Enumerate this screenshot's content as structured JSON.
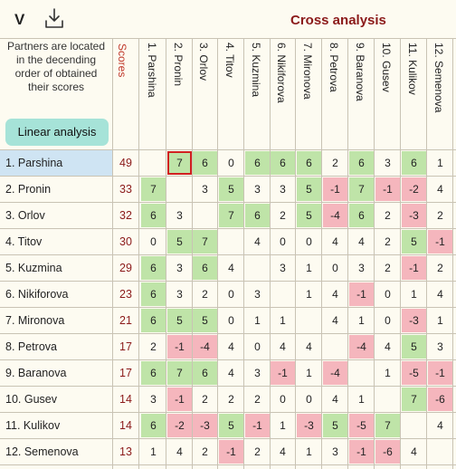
{
  "toolbar": {
    "v_label": "V",
    "download_icon": "download-icon"
  },
  "title": "Cross analysis",
  "info_text": "Partners are located in the decending order of obtained their scores",
  "linear_button": "Linear analysis",
  "scores_header": "Scores",
  "columns": [
    "1. Parshina",
    "2. Pronin",
    "3. Orlov",
    "4. Titov",
    "5. Kuzmina",
    "6. Nikiforova",
    "7. Mironova",
    "8. Petrova",
    "9. Baranova",
    "10. Gusev",
    "11. Kulikov",
    "12. Semenova"
  ],
  "selected_row": 0,
  "highlighted_cell": [
    0,
    1
  ],
  "colors": {
    "positive": "#bfe4a8",
    "negative": "#f5b6bd",
    "highlight": "#d02020",
    "title": "#8b1a1a",
    "accent_button": "#a6e3d8",
    "selected_row": "#cfe4f3"
  },
  "rows": [
    {
      "name": "1. Parshina",
      "score": "49",
      "values": [
        null,
        7,
        6,
        0,
        6,
        6,
        6,
        2,
        6,
        3,
        6,
        1
      ]
    },
    {
      "name": "2. Pronin",
      "score": "33",
      "values": [
        7,
        null,
        3,
        5,
        3,
        3,
        5,
        -1,
        7,
        -1,
        -2,
        4
      ]
    },
    {
      "name": "3. Orlov",
      "score": "32",
      "values": [
        6,
        3,
        null,
        7,
        6,
        2,
        5,
        -4,
        6,
        2,
        -3,
        2
      ]
    },
    {
      "name": "4. Titov",
      "score": "30",
      "values": [
        0,
        5,
        7,
        null,
        4,
        0,
        0,
        4,
        4,
        2,
        5,
        -1
      ]
    },
    {
      "name": "5. Kuzmina",
      "score": "29",
      "values": [
        6,
        3,
        6,
        4,
        null,
        3,
        1,
        0,
        3,
        2,
        -1,
        2
      ]
    },
    {
      "name": "6. Nikiforova",
      "score": "23",
      "values": [
        6,
        3,
        2,
        0,
        3,
        null,
        1,
        4,
        -1,
        0,
        1,
        4
      ]
    },
    {
      "name": "7. Mironova",
      "score": "21",
      "values": [
        6,
        5,
        5,
        0,
        1,
        1,
        null,
        4,
        1,
        0,
        -3,
        1
      ]
    },
    {
      "name": "8. Petrova",
      "score": "17",
      "values": [
        2,
        -1,
        -4,
        4,
        0,
        4,
        4,
        null,
        -4,
        4,
        5,
        3
      ]
    },
    {
      "name": "9. Baranova",
      "score": "17",
      "values": [
        6,
        7,
        6,
        4,
        3,
        -1,
        1,
        -4,
        null,
        1,
        -5,
        -1
      ]
    },
    {
      "name": "10. Gusev",
      "score": "14",
      "values": [
        3,
        -1,
        2,
        2,
        2,
        0,
        0,
        4,
        1,
        null,
        7,
        -6
      ]
    },
    {
      "name": "11. Kulikov",
      "score": "14",
      "values": [
        6,
        -2,
        -3,
        5,
        -1,
        1,
        -3,
        5,
        -5,
        7,
        null,
        4
      ]
    },
    {
      "name": "12. Semenova",
      "score": "13",
      "values": [
        1,
        4,
        2,
        -1,
        2,
        4,
        1,
        3,
        -1,
        -6,
        4,
        null
      ]
    }
  ]
}
